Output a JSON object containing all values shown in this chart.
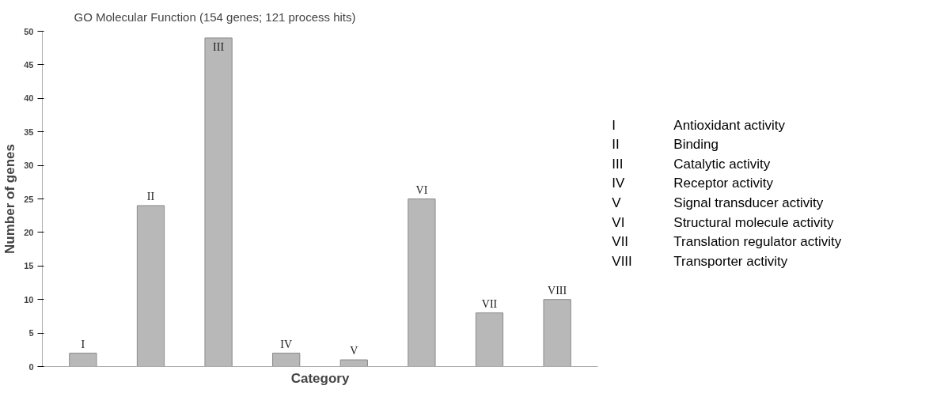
{
  "chart_data": {
    "type": "bar",
    "title": "GO Molecular Function (154 genes; 121 process hits)",
    "xlabel": "Category",
    "ylabel": "Number of genes",
    "categories": [
      "I",
      "II",
      "III",
      "IV",
      "V",
      "VI",
      "VII",
      "VIII"
    ],
    "values": [
      2,
      24,
      49,
      2,
      1,
      25,
      8,
      10
    ],
    "color": "#b8b8b8",
    "ylim": [
      0,
      50
    ],
    "yticks": [
      0,
      5,
      10,
      15,
      20,
      25,
      30,
      35,
      40,
      45,
      50
    ],
    "grid": false,
    "tick_labels": "y",
    "annotations": [
      "Antioxidant activity",
      "Binding",
      "Catalytic activity",
      "Receptor activity",
      "Signal transducer activity",
      "Structural molecule activity",
      "Translation regulator activity",
      "Transporter activity"
    ]
  }
}
